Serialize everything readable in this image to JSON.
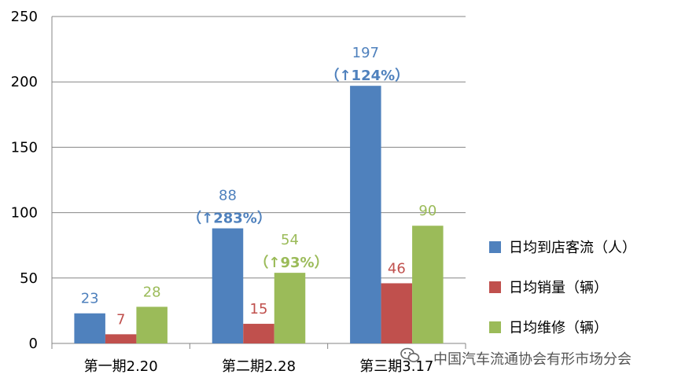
{
  "chart_data": {
    "type": "bar",
    "categories": [
      "第一期2.20",
      "第二期2.28",
      "第三期3.17"
    ],
    "series": [
      {
        "name": "日均到店客流（人）",
        "values": [
          23,
          88,
          197
        ],
        "color": "#4F81BD"
      },
      {
        "name": "日均销量（辆）",
        "values": [
          7,
          15,
          46
        ],
        "color": "#C0504D"
      },
      {
        "name": "日均维修（辆）",
        "values": [
          28,
          54,
          90
        ],
        "color": "#9BBB59"
      }
    ],
    "annotations": [
      {
        "series": 0,
        "category": 1,
        "text": "（↑283%）"
      },
      {
        "series": 2,
        "category": 1,
        "text": "（↑93%）"
      },
      {
        "series": 0,
        "category": 2,
        "text": "（↑124%）"
      }
    ],
    "ylim": [
      0,
      250
    ],
    "yticks": [
      "0",
      "50",
      "100",
      "150",
      "200",
      "250"
    ],
    "grid": true,
    "legend": "right"
  },
  "watermark": "中国汽车流通协会有形市场分会",
  "watermark_icon": "wechat-icon"
}
